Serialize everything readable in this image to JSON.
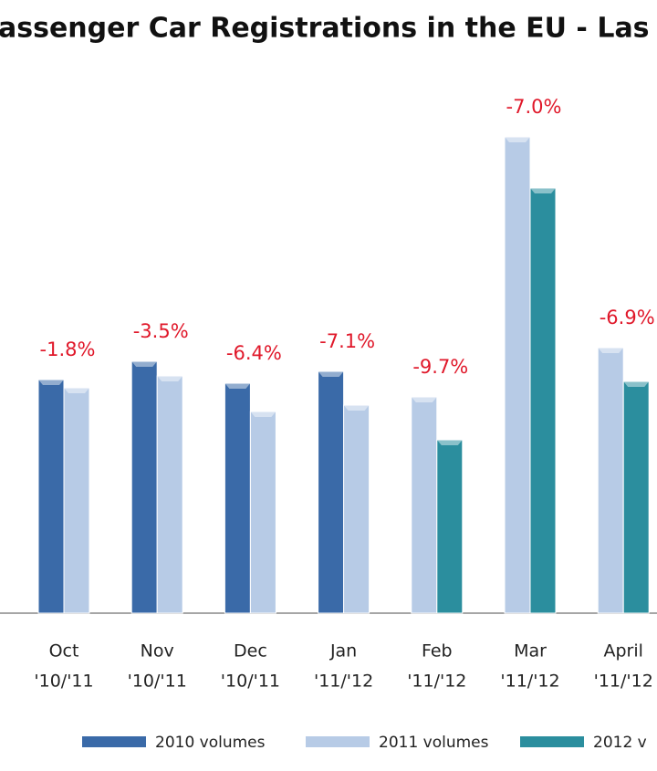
{
  "chart_data": {
    "type": "bar",
    "title": "assenger Car Registrations in the EU - Las",
    "categories": [
      "Oct",
      "Nov",
      "Dec",
      "Jan",
      "Feb",
      "Mar",
      "April"
    ],
    "periods": [
      "'10/'11",
      "'10/'11",
      "'10/'11",
      "'11/'12",
      "'11/'12",
      "'11/'12",
      "'11/'12"
    ],
    "change_labels": [
      "-1.8%",
      "-3.5%",
      "-6.4%",
      "-7.1%",
      "-9.7%",
      "-7.0%",
      "-6.9%"
    ],
    "series": [
      {
        "name": "2010 volumes",
        "color": "#3a6aa8",
        "values": [
          256,
          276,
          252,
          265,
          null,
          null,
          null
        ]
      },
      {
        "name": "2011 volumes",
        "color": "#b7cbe6",
        "values": [
          247,
          260,
          221,
          228,
          237,
          522,
          291
        ]
      },
      {
        "name": "2012 v",
        "color": "#2b8e9e",
        "values": [
          null,
          null,
          null,
          null,
          190,
          466,
          254
        ]
      }
    ],
    "ylim": [
      0,
      560
    ]
  }
}
